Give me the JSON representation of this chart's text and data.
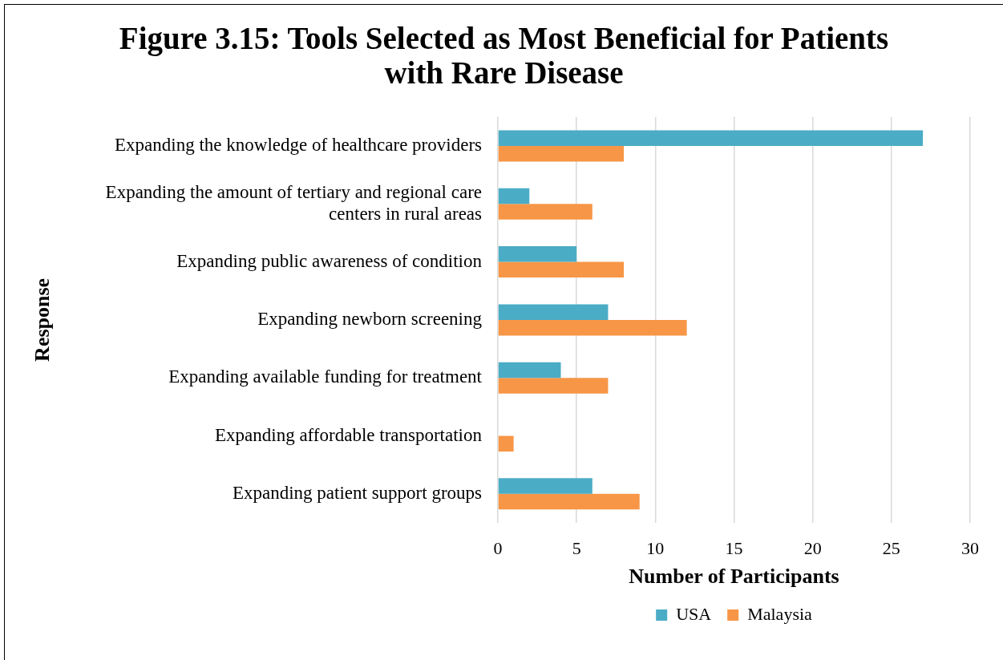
{
  "chart_data": {
    "type": "bar",
    "orientation": "horizontal",
    "title": "Figure 3.15: Tools Selected as Most Beneficial for Patients with Rare Disease",
    "xlabel": "Number of Participants",
    "ylabel": "Response",
    "categories": [
      "Expanding the knowledge of healthcare providers",
      "Expanding the amount of tertiary and regional care centers in rural areas",
      "Expanding public awareness of condition",
      "Expanding newborn screening",
      "Expanding available funding for treatment",
      "Expanding affordable transportation",
      "Expanding patient support groups"
    ],
    "series": [
      {
        "name": "USA",
        "color": "#4bacc6",
        "values": [
          27,
          2,
          5,
          7,
          4,
          0,
          6
        ]
      },
      {
        "name": "Malaysia",
        "color": "#f79646",
        "values": [
          8,
          6,
          8,
          12,
          7,
          1,
          9
        ]
      }
    ],
    "xlim": [
      0,
      30
    ],
    "xticks": [
      0,
      5,
      10,
      15,
      20,
      25,
      30
    ],
    "grid": "x",
    "legend": "bottom"
  }
}
